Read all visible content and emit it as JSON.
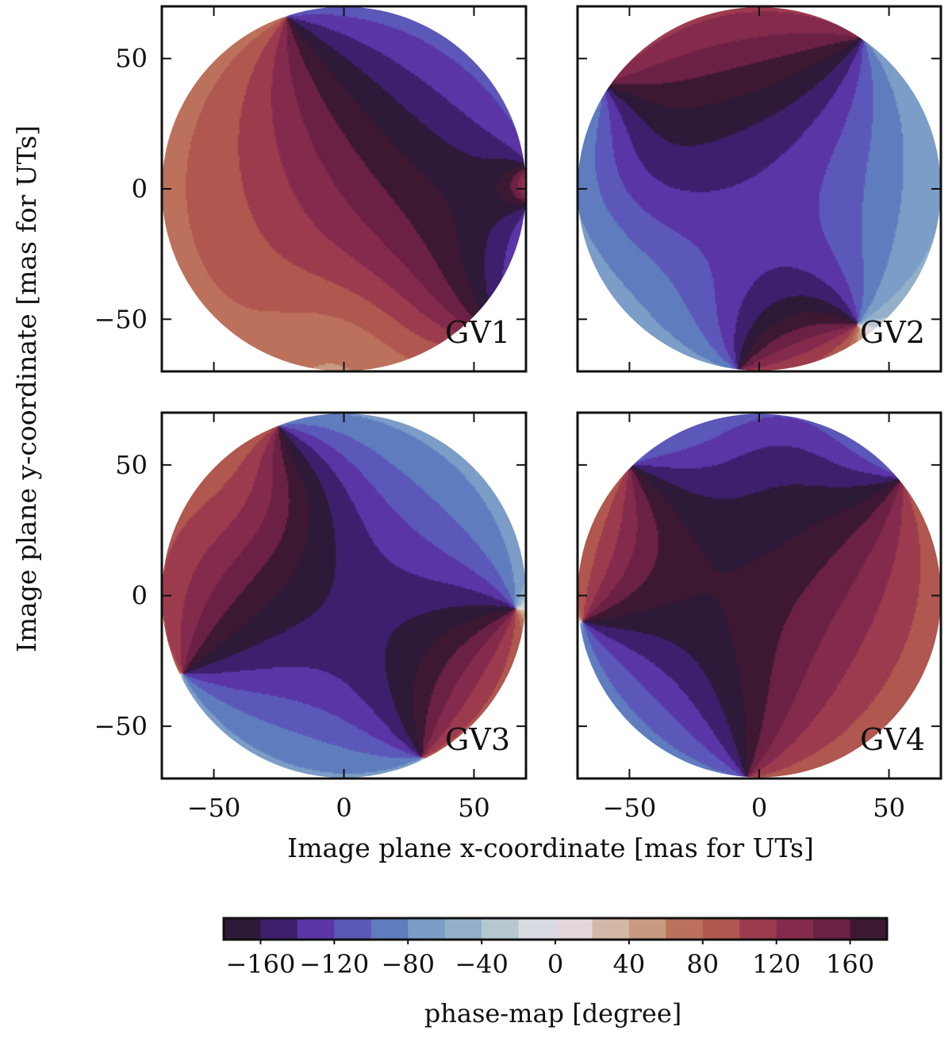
{
  "chart_data": {
    "type": "heatmap",
    "xlabel": "Image plane x-coordinate [mas for UTs]",
    "ylabel": "Image plane y-coordinate [mas for UTs]",
    "xlim": [
      -70,
      70
    ],
    "ylim": [
      -70,
      70
    ],
    "x_ticks": [
      -50,
      0,
      50
    ],
    "y_ticks": [
      50,
      0,
      -50
    ],
    "x_tick_labels": [
      "−50",
      "0",
      "50"
    ],
    "y_tick_labels": [
      "50",
      "0",
      "−50"
    ],
    "grid": false,
    "panels": [
      {
        "label": "GV1",
        "singularities": [
          [
            -22,
            66
          ],
          [
            72,
            8
          ],
          [
            72,
            -5
          ],
          [
            58,
            -58
          ]
        ],
        "dip": [
          0,
          -62
        ]
      },
      {
        "label": "GV2",
        "singularities": [
          [
            40,
            58
          ],
          [
            38,
            -52
          ],
          [
            -8,
            -70
          ],
          [
            -60,
            40
          ]
        ],
        "dip": [
          -45,
          8
        ]
      },
      {
        "label": "GV3",
        "singularities": [
          [
            -25,
            65
          ],
          [
            66,
            -5
          ],
          [
            30,
            -62
          ],
          [
            -62,
            -30
          ]
        ],
        "dip": [
          -30,
          40
        ]
      },
      {
        "label": "GV4",
        "singularities": [
          [
            -50,
            50
          ],
          [
            55,
            45
          ],
          [
            -5,
            -70
          ],
          [
            -68,
            -10
          ]
        ],
        "dip": [
          10,
          60
        ]
      }
    ],
    "colorbar": {
      "label": "phase-map [degree]",
      "range": [
        -180,
        180
      ],
      "levels": 18,
      "tick_values": [
        -160,
        -120,
        -80,
        -40,
        0,
        40,
        80,
        120,
        160
      ],
      "tick_labels": [
        "−160",
        "−120",
        "−80",
        "−40",
        "0",
        "40",
        "80",
        "120",
        "160"
      ],
      "colors": [
        "#2d1a38",
        "#3d1f6e",
        "#5a35a6",
        "#5c58b9",
        "#5f7cbf",
        "#7b9dc7",
        "#93b0c8",
        "#b5c7cf",
        "#d8dbe2",
        "#e3d6dc",
        "#d3b8a7",
        "#c99a82",
        "#bc715c",
        "#b0574f",
        "#9d3b4e",
        "#842a4d",
        "#6b2144",
        "#3d1832"
      ]
    }
  }
}
